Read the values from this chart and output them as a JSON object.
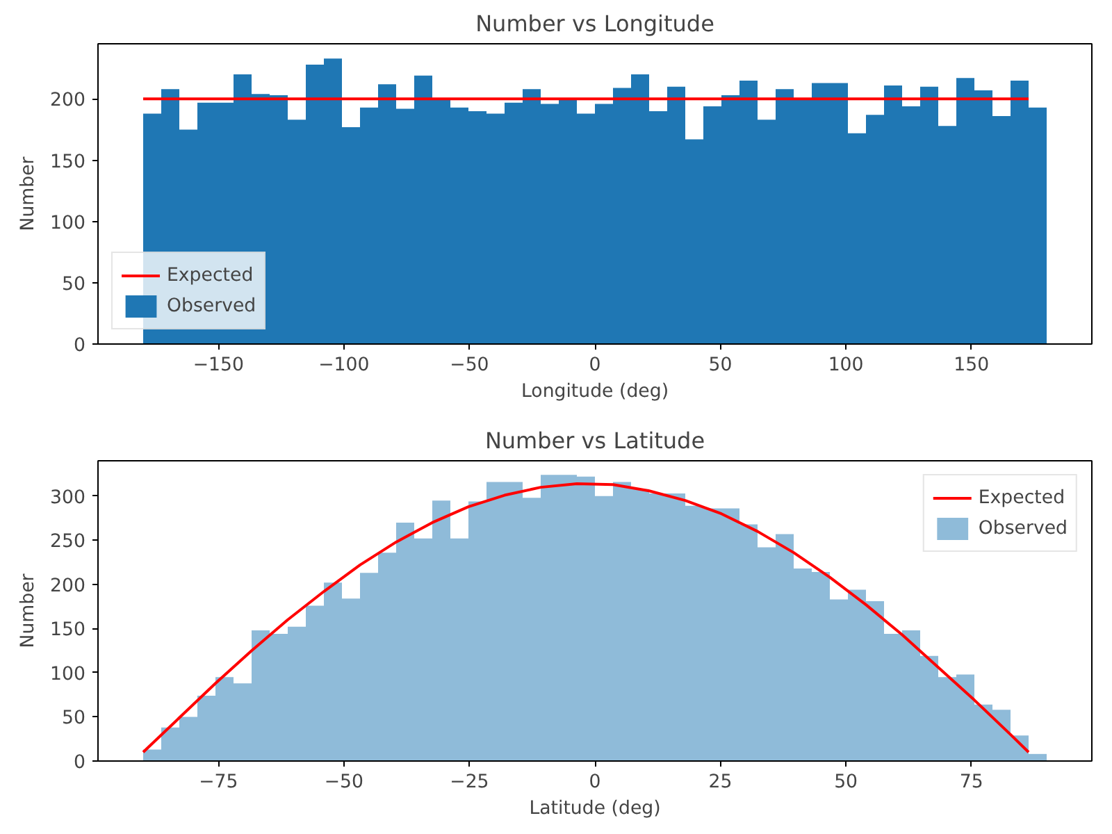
{
  "chart_data": [
    {
      "type": "histogram",
      "title": "Number vs Longitude",
      "xlabel": "Longitude (deg)",
      "ylabel": "Number",
      "bins": [
        -180,
        -172.8,
        -165.6,
        -158.4,
        -151.2,
        -144,
        -136.8,
        -129.6,
        -122.4,
        -115.2,
        -108,
        -100.8,
        -93.6,
        -86.4,
        -79.2,
        -72,
        -64.8,
        -57.6,
        -50.4,
        -43.2,
        -36,
        -28.8,
        -21.6,
        -14.4,
        -7.2,
        0,
        7.2,
        14.4,
        21.6,
        28.8,
        36,
        43.2,
        50.4,
        57.6,
        64.8,
        72,
        79.2,
        86.4,
        93.6,
        100.8,
        108,
        115.2,
        122.4,
        129.6,
        136.8,
        144,
        151.2,
        158.4,
        165.6,
        172.8,
        180
      ],
      "series": [
        {
          "name": "Expected",
          "type": "line",
          "color": "#ff0000",
          "x": [
            -180,
            172.8
          ],
          "values": [
            200,
            200
          ]
        },
        {
          "name": "Observed",
          "color": "#1f77b4",
          "values": [
            188,
            208,
            175,
            197,
            197,
            220,
            204,
            203,
            183,
            228,
            233,
            177,
            193,
            212,
            192,
            219,
            200,
            193,
            190,
            188,
            197,
            208,
            196,
            199,
            188,
            196,
            209,
            220,
            190,
            210,
            167,
            194,
            203,
            215,
            183,
            208,
            200,
            213,
            213,
            172,
            187,
            211,
            194,
            210,
            178,
            217,
            207,
            186,
            215,
            193
          ]
        }
      ],
      "xlim": [
        -198,
        198
      ],
      "ylim": [
        0,
        245
      ],
      "xticks": [
        {
          "value": -150,
          "label": "−150"
        },
        {
          "value": -100,
          "label": "−100"
        },
        {
          "value": -50,
          "label": "−50"
        },
        0,
        50,
        100,
        150
      ],
      "yticks": [
        0,
        50,
        100,
        150,
        200
      ],
      "legend": "bottom left",
      "grid": false
    },
    {
      "type": "histogram",
      "title": "Number vs Latitude",
      "xlabel": "Latitude (deg)",
      "ylabel": "Number",
      "bins": [
        -90,
        -86.4,
        -82.8,
        -79.2,
        -75.6,
        -72,
        -68.4,
        -64.8,
        -61.2,
        -57.6,
        -54,
        -50.4,
        -46.8,
        -43.2,
        -39.6,
        -36,
        -32.4,
        -28.8,
        -25.2,
        -21.6,
        -18,
        -14.4,
        -10.8,
        -7.2,
        -3.6,
        0,
        3.6,
        7.2,
        10.8,
        14.4,
        18,
        21.6,
        25.2,
        28.8,
        32.4,
        36,
        39.6,
        43.2,
        46.8,
        50.4,
        54,
        57.6,
        61.2,
        64.8,
        68.4,
        72,
        75.6,
        79.2,
        82.8,
        86.4,
        90
      ],
      "series": [
        {
          "name": "Expected",
          "type": "line",
          "color": "#ff0000",
          "x": [
            -90,
            -82.8,
            -75.6,
            -68.4,
            -61.2,
            -54,
            -46.8,
            -39.6,
            -32.4,
            -25.2,
            -18,
            -10.8,
            -3.6,
            3.6,
            10.8,
            18,
            25.2,
            32.4,
            39.6,
            46.8,
            54,
            61.2,
            68.4,
            75.6,
            82.8,
            86.4
          ],
          "values": [
            10,
            49,
            88,
            125,
            160,
            192,
            222,
            248,
            270,
            288,
            301,
            310,
            314,
            313,
            306,
            295,
            280,
            260,
            236,
            208,
            177,
            143,
            106,
            69,
            30,
            10
          ]
        },
        {
          "name": "Observed",
          "color": "#8fbbd9",
          "values": [
            13,
            38,
            50,
            74,
            95,
            88,
            148,
            144,
            152,
            176,
            202,
            184,
            213,
            236,
            270,
            252,
            295,
            252,
            294,
            316,
            316,
            298,
            324,
            324,
            322,
            300,
            316,
            308,
            303,
            303,
            289,
            286,
            286,
            268,
            242,
            257,
            218,
            214,
            183,
            194,
            181,
            144,
            148,
            119,
            95,
            98,
            64,
            58,
            29,
            8
          ]
        }
      ],
      "xlim": [
        -99,
        99
      ],
      "ylim": [
        0,
        340
      ],
      "xticks": [
        {
          "value": -75,
          "label": "−75"
        },
        {
          "value": -50,
          "label": "−50"
        },
        {
          "value": -25,
          "label": "−25"
        },
        0,
        25,
        50,
        75
      ],
      "yticks": [
        0,
        50,
        100,
        150,
        200,
        250,
        300
      ],
      "legend": "top right",
      "grid": false
    }
  ]
}
